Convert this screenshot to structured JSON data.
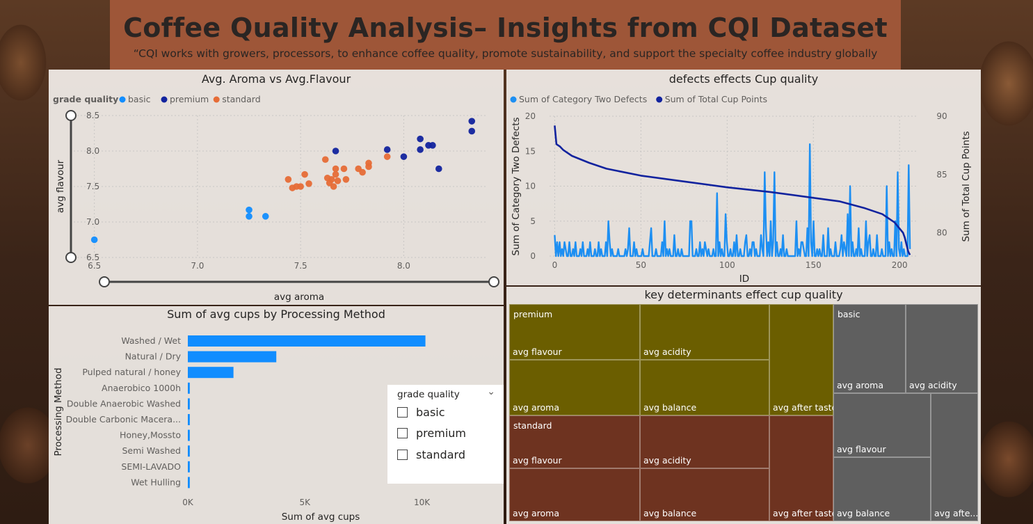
{
  "header": {
    "title": "Coffee Quality Analysis– Insights from CQI Dataset",
    "subtitle": "“CQI works with growers, processors, to enhance coffee quality, promote sustainability, and support the specialty coffee industry globally"
  },
  "slicer": {
    "title": "grade quality",
    "options": [
      "basic",
      "premium",
      "standard"
    ]
  },
  "colors": {
    "basic": "#118dff",
    "premium": "#12239e",
    "standard": "#e66c37",
    "cat2_defects": "#1d8ff2",
    "cup_points": "#12239e",
    "bar": "#118dff",
    "treemap_premium": "#6b5e00",
    "treemap_standard": "#6e3320",
    "treemap_basic": "#5f5f5f"
  },
  "chart_data": [
    {
      "type": "scatter",
      "title": "Avg. Aroma vs Avg.Flavour",
      "xlabel": "avg aroma",
      "ylabel": "avg flavour",
      "legend_title": "grade quality",
      "legend_position": "top-left",
      "xlim": [
        6.4,
        8.4
      ],
      "ylim": [
        6.5,
        8.5
      ],
      "xticks": [
        "6.5",
        "7.0",
        "7.5",
        "8.0"
      ],
      "yticks": [
        "6.5",
        "7.0",
        "7.5",
        "8.0",
        "8.5"
      ],
      "grid": true,
      "series": [
        {
          "name": "basic",
          "points": [
            [
              6.5,
              6.75
            ],
            [
              7.25,
              7.17
            ],
            [
              7.25,
              7.08
            ],
            [
              7.33,
              7.08
            ]
          ]
        },
        {
          "name": "premium",
          "points": [
            [
              7.67,
              8.0
            ],
            [
              7.92,
              8.02
            ],
            [
              8.0,
              7.92
            ],
            [
              8.08,
              8.02
            ],
            [
              8.08,
              8.17
            ],
            [
              8.12,
              8.08
            ],
            [
              8.14,
              8.08
            ],
            [
              8.17,
              7.75
            ],
            [
              8.33,
              8.42
            ],
            [
              8.33,
              8.28
            ]
          ]
        },
        {
          "name": "standard",
          "points": [
            [
              7.44,
              7.6
            ],
            [
              7.46,
              7.48
            ],
            [
              7.48,
              7.5
            ],
            [
              7.5,
              7.5
            ],
            [
              7.52,
              7.67
            ],
            [
              7.54,
              7.54
            ],
            [
              7.62,
              7.88
            ],
            [
              7.63,
              7.62
            ],
            [
              7.64,
              7.55
            ],
            [
              7.65,
              7.6
            ],
            [
              7.66,
              7.5
            ],
            [
              7.67,
              7.75
            ],
            [
              7.67,
              7.67
            ],
            [
              7.68,
              7.58
            ],
            [
              7.71,
              7.75
            ],
            [
              7.72,
              7.6
            ],
            [
              7.78,
              7.75
            ],
            [
              7.8,
              7.7
            ],
            [
              7.83,
              7.83
            ],
            [
              7.83,
              7.78
            ],
            [
              7.92,
              7.92
            ]
          ]
        }
      ]
    },
    {
      "type": "line",
      "title": "defects effects Cup quality",
      "xlabel": "ID",
      "ylabel": "Sum of Category Two Defects",
      "y2label": "Sum of Total Cup Points",
      "legend_position": "top-left",
      "xlim": [
        -3,
        210
      ],
      "ylim": [
        0,
        20
      ],
      "y2lim": [
        78,
        90
      ],
      "xticks": [
        "0",
        "50",
        "100",
        "150",
        "200"
      ],
      "yticks": [
        "0",
        "5",
        "10",
        "15",
        "20"
      ],
      "y2ticks": [
        "80",
        "85",
        "90"
      ],
      "grid": true,
      "series": [
        {
          "name": "Sum of Category Two Defects",
          "axis": "left",
          "values": [
            3,
            0,
            2,
            0,
            2,
            0,
            1,
            0,
            2,
            1,
            0,
            0,
            2,
            0,
            0,
            1,
            0,
            2,
            0,
            0,
            0,
            1,
            0,
            2,
            0,
            0,
            0,
            1,
            0,
            2,
            0,
            0,
            0,
            1,
            0,
            0,
            2,
            0,
            1,
            0,
            0,
            0,
            2,
            0,
            5,
            2,
            0,
            1,
            0,
            0,
            0,
            0,
            1,
            0,
            0,
            0,
            0,
            0,
            1,
            0,
            1,
            4,
            0,
            0,
            0,
            2,
            0,
            1,
            0,
            0,
            0,
            0,
            1,
            0,
            0,
            0,
            0,
            0,
            2,
            4,
            0,
            0,
            0,
            1,
            0,
            0,
            0,
            0,
            2,
            0,
            5,
            0,
            1,
            0,
            1,
            0,
            0,
            0,
            3,
            0,
            0,
            1,
            0,
            0,
            1,
            0,
            0,
            0,
            0,
            0,
            0,
            5,
            5,
            0,
            0,
            0,
            1,
            0,
            0,
            2,
            0,
            1,
            0,
            2,
            1,
            0,
            1,
            0,
            0,
            0,
            1,
            0,
            0,
            9,
            0,
            2,
            0,
            1,
            0,
            0,
            6,
            2,
            0,
            0,
            1,
            0,
            0,
            2,
            0,
            3,
            0,
            0,
            1,
            0,
            0,
            0,
            2,
            3,
            0,
            0,
            1,
            0,
            2,
            2,
            0,
            1,
            0,
            0,
            0,
            3,
            1,
            0,
            12,
            4,
            0,
            2,
            0,
            5,
            0,
            2,
            12,
            0,
            2,
            0,
            0,
            1,
            0,
            3,
            0,
            0,
            1,
            0,
            0,
            0,
            0,
            0,
            0,
            0,
            5,
            0,
            1,
            0,
            2,
            2,
            1,
            0,
            0,
            4,
            0,
            16,
            2,
            0,
            5,
            0,
            0,
            1,
            0,
            1,
            0,
            0,
            3,
            0,
            0,
            0,
            4,
            0,
            1,
            0,
            0,
            0,
            2,
            0,
            0,
            0,
            1,
            3,
            0,
            2,
            1,
            0,
            6,
            0,
            10,
            0,
            2,
            0,
            0,
            1,
            0,
            4,
            0,
            1,
            0,
            0,
            0,
            5,
            0,
            2,
            3,
            0,
            0,
            1,
            0,
            0,
            3,
            0,
            0,
            0,
            1,
            0,
            0,
            0,
            10,
            0,
            2,
            0,
            1,
            0,
            0,
            5,
            0,
            12,
            1,
            0,
            2,
            0,
            1,
            0,
            0,
            0,
            13,
            1
          ],
          "x_max": 206
        },
        {
          "name": "Sum of Total Cup Points",
          "axis": "right",
          "points": [
            [
              0,
              89.2
            ],
            [
              1,
              87.6
            ],
            [
              3,
              87.4
            ],
            [
              5,
              87.1
            ],
            [
              10,
              86.6
            ],
            [
              20,
              86.0
            ],
            [
              30,
              85.5
            ],
            [
              50,
              84.9
            ],
            [
              75,
              84.4
            ],
            [
              100,
              83.9
            ],
            [
              125,
              83.5
            ],
            [
              150,
              83.0
            ],
            [
              165,
              82.7
            ],
            [
              180,
              82.1
            ],
            [
              190,
              81.6
            ],
            [
              197,
              80.9
            ],
            [
              202,
              80.0
            ],
            [
              203,
              79.6
            ],
            [
              204,
              79.0
            ],
            [
              205,
              78.4
            ],
            [
              206,
              78.1
            ]
          ]
        }
      ]
    },
    {
      "type": "bar",
      "orientation": "horizontal",
      "title": "Sum of avg cups by Processing Method",
      "xlabel": "Sum of avg cups",
      "ylabel": "Processing Method",
      "xlim": [
        0,
        11500
      ],
      "xticks": [
        "0K",
        "5K",
        "10K"
      ],
      "categories": [
        "Washed / Wet",
        "Natural / Dry",
        "Pulped natural / honey",
        "Anaerobico 1000h",
        "Double Anaerobic Washed",
        "Double Carbonic Macera...",
        "Honey,Mossto",
        "Semi Washed",
        "SEMI-LAVADO",
        "Wet Hulling"
      ],
      "values": [
        10150,
        3780,
        1950,
        85,
        85,
        85,
        85,
        85,
        85,
        85
      ]
    },
    {
      "type": "treemap",
      "title": "key determinants effect cup quality",
      "groups": [
        {
          "name": "premium",
          "items": [
            "avg flavour",
            "avg acidity",
            "avg aroma",
            "avg balance",
            "avg after taste"
          ]
        },
        {
          "name": "standard",
          "items": [
            "avg flavour",
            "avg acidity",
            "avg aroma",
            "avg balance",
            "avg after taste"
          ]
        },
        {
          "name": "basic",
          "items": [
            "avg aroma",
            "avg acidity",
            "avg flavour",
            "avg balance",
            "avg afte..."
          ]
        }
      ]
    }
  ]
}
